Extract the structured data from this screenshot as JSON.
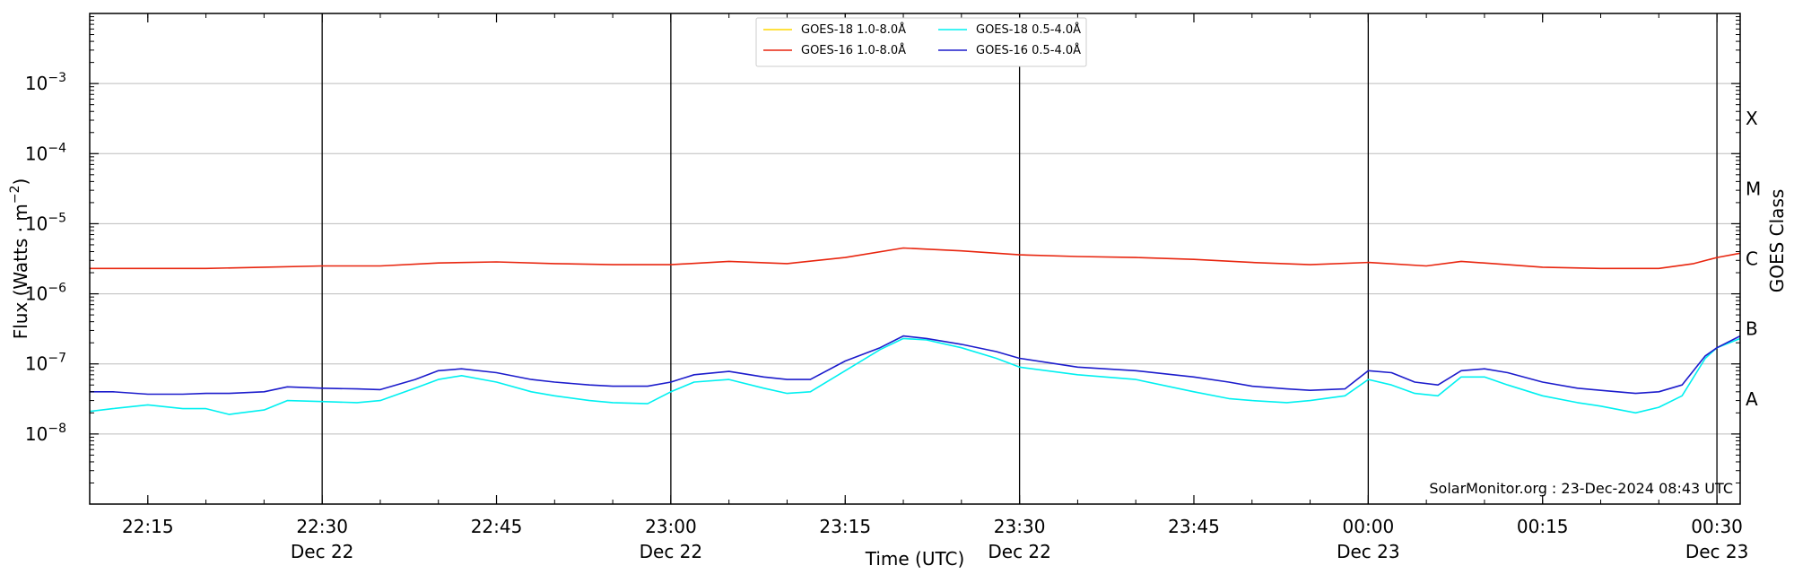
{
  "chart_data": {
    "type": "line",
    "title": "",
    "xlabel": "Time (UTC)",
    "ylabel": "Flux (Watts · m⁻²)",
    "ylabel_right": "GOES Class",
    "yscale": "log",
    "ylim": [
      1e-09,
      0.01
    ],
    "x_time_range": [
      "22:10",
      "00:32"
    ],
    "y_ticks": [
      {
        "label_base": "10",
        "label_exp": "−3"
      },
      {
        "label_base": "10",
        "label_exp": "−4"
      },
      {
        "label_base": "10",
        "label_exp": "−5"
      },
      {
        "label_base": "10",
        "label_exp": "−6"
      },
      {
        "label_base": "10",
        "label_exp": "−7"
      },
      {
        "label_base": "10",
        "label_exp": "−8"
      }
    ],
    "x_ticks": [
      {
        "time": "22:15",
        "label": "22:15",
        "date": ""
      },
      {
        "time": "22:30",
        "label": "22:30",
        "date": "Dec 22"
      },
      {
        "time": "22:45",
        "label": "22:45",
        "date": ""
      },
      {
        "time": "23:00",
        "label": "23:00",
        "date": "Dec 22"
      },
      {
        "time": "23:15",
        "label": "23:15",
        "date": ""
      },
      {
        "time": "23:30",
        "label": "23:30",
        "date": "Dec 22"
      },
      {
        "time": "23:45",
        "label": "23:45",
        "date": ""
      },
      {
        "time": "00:00",
        "label": "00:00",
        "date": "Dec 23"
      },
      {
        "time": "00:15",
        "label": "00:15",
        "date": ""
      },
      {
        "time": "00:30",
        "label": "00:30",
        "date": "Dec 23"
      }
    ],
    "vertical_lines": [
      "22:30",
      "23:00",
      "23:30",
      "00:00",
      "00:30"
    ],
    "goes_classes": [
      "X",
      "M",
      "C",
      "B",
      "A"
    ],
    "grid": "horizontal",
    "legend_position": "top-center",
    "annotation": "SolarMonitor.org : 23-Dec-2024 08:43 UTC",
    "series": [
      {
        "name": "GOES-18 1.0-8.0Å",
        "color": "#ffd700",
        "x": [],
        "y": []
      },
      {
        "name": "GOES-16 1.0-8.0Å",
        "color": "#e8250e",
        "x": [
          "22:10",
          "22:20",
          "22:25",
          "22:30",
          "22:35",
          "22:40",
          "22:45",
          "22:50",
          "22:55",
          "23:00",
          "23:05",
          "23:10",
          "23:15",
          "23:20",
          "23:25",
          "23:30",
          "23:35",
          "23:40",
          "23:45",
          "23:50",
          "23:55",
          "00:00",
          "00:05",
          "00:08",
          "00:12",
          "00:15",
          "00:20",
          "00:25",
          "00:28",
          "00:30",
          "00:32"
        ],
        "y": [
          2.3e-06,
          2.3e-06,
          2.4e-06,
          2.5e-06,
          2.5e-06,
          2.75e-06,
          2.85e-06,
          2.7e-06,
          2.6e-06,
          2.6e-06,
          2.9e-06,
          2.7e-06,
          3.3e-06,
          4.5e-06,
          4.1e-06,
          3.6e-06,
          3.4e-06,
          3.3e-06,
          3.1e-06,
          2.8e-06,
          2.6e-06,
          2.8e-06,
          2.5e-06,
          2.9e-06,
          2.6e-06,
          2.4e-06,
          2.3e-06,
          2.3e-06,
          2.7e-06,
          3.3e-06,
          3.8e-06
        ]
      },
      {
        "name": "GOES-18 0.5-4.0Å",
        "color": "#00f0f0",
        "x": [
          "22:10",
          "22:12",
          "22:15",
          "22:18",
          "22:20",
          "22:22",
          "22:23",
          "22:25",
          "22:27",
          "22:30",
          "22:33",
          "22:35",
          "22:38",
          "22:40",
          "22:42",
          "22:45",
          "22:48",
          "22:50",
          "22:53",
          "22:55",
          "22:58",
          "23:00",
          "23:02",
          "23:05",
          "23:08",
          "23:10",
          "23:12",
          "23:15",
          "23:18",
          "23:20",
          "23:22",
          "23:25",
          "23:28",
          "23:30",
          "23:35",
          "23:40",
          "23:45",
          "23:48",
          "23:50",
          "23:53",
          "23:55",
          "23:58",
          "00:00",
          "00:02",
          "00:04",
          "00:06",
          "00:08",
          "00:10",
          "00:12",
          "00:15",
          "00:18",
          "00:20",
          "00:23",
          "00:25",
          "00:27",
          "00:29",
          "00:30",
          "00:32"
        ],
        "y": [
          2.1e-08,
          2.3e-08,
          2.6e-08,
          2.3e-08,
          2.3e-08,
          1.9e-08,
          2e-08,
          2.2e-08,
          3e-08,
          2.9e-08,
          2.8e-08,
          3e-08,
          4.5e-08,
          6e-08,
          6.8e-08,
          5.5e-08,
          4e-08,
          3.5e-08,
          3e-08,
          2.8e-08,
          2.7e-08,
          4e-08,
          5.5e-08,
          6e-08,
          4.5e-08,
          3.8e-08,
          4e-08,
          8e-08,
          1.6e-07,
          2.3e-07,
          2.2e-07,
          1.7e-07,
          1.2e-07,
          9e-08,
          7e-08,
          6e-08,
          4e-08,
          3.2e-08,
          3e-08,
          2.8e-08,
          3e-08,
          3.5e-08,
          6e-08,
          5e-08,
          3.8e-08,
          3.5e-08,
          6.5e-08,
          6.5e-08,
          5e-08,
          3.5e-08,
          2.8e-08,
          2.5e-08,
          2e-08,
          2.4e-08,
          3.5e-08,
          1.2e-07,
          1.7e-07,
          2.3e-07
        ]
      },
      {
        "name": "GOES-16 0.5-4.0Å",
        "color": "#1c1ccc",
        "x": [
          "22:10",
          "22:12",
          "22:15",
          "22:18",
          "22:20",
          "22:22",
          "22:25",
          "22:27",
          "22:30",
          "22:33",
          "22:35",
          "22:38",
          "22:40",
          "22:42",
          "22:45",
          "22:48",
          "22:50",
          "22:53",
          "22:55",
          "22:58",
          "23:00",
          "23:02",
          "23:05",
          "23:08",
          "23:10",
          "23:12",
          "23:15",
          "23:18",
          "23:20",
          "23:22",
          "23:25",
          "23:28",
          "23:30",
          "23:35",
          "23:40",
          "23:45",
          "23:48",
          "23:50",
          "23:53",
          "23:55",
          "23:58",
          "00:00",
          "00:02",
          "00:04",
          "00:06",
          "00:08",
          "00:10",
          "00:12",
          "00:15",
          "00:18",
          "00:20",
          "00:23",
          "00:25",
          "00:27",
          "00:29",
          "00:30",
          "00:32"
        ],
        "y": [
          4e-08,
          4e-08,
          3.7e-08,
          3.7e-08,
          3.8e-08,
          3.8e-08,
          4e-08,
          4.7e-08,
          4.5e-08,
          4.4e-08,
          4.3e-08,
          6e-08,
          8e-08,
          8.5e-08,
          7.5e-08,
          6e-08,
          5.5e-08,
          5e-08,
          4.8e-08,
          4.8e-08,
          5.5e-08,
          7e-08,
          7.8e-08,
          6.5e-08,
          6e-08,
          6e-08,
          1.1e-07,
          1.7e-07,
          2.5e-07,
          2.3e-07,
          1.9e-07,
          1.5e-07,
          1.2e-07,
          9e-08,
          8e-08,
          6.5e-08,
          5.5e-08,
          4.8e-08,
          4.4e-08,
          4.2e-08,
          4.4e-08,
          8e-08,
          7.5e-08,
          5.5e-08,
          5e-08,
          8e-08,
          8.5e-08,
          7.5e-08,
          5.5e-08,
          4.5e-08,
          4.2e-08,
          3.8e-08,
          4e-08,
          5e-08,
          1.3e-07,
          1.7e-07,
          2.5e-07
        ]
      }
    ]
  }
}
